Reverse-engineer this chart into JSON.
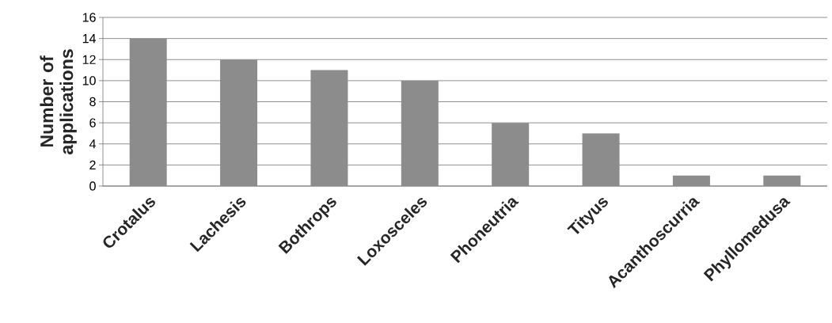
{
  "chart_data": {
    "type": "bar",
    "ylabel": "Number of applications",
    "categories": [
      "Crotalus",
      "Lachesis",
      "Bothrops",
      "Loxosceles",
      "Phoneutria",
      "Tityus",
      "Acanthoscurria",
      "Phyllomedusa"
    ],
    "values": [
      14,
      12,
      11,
      10,
      6,
      5,
      1,
      1
    ],
    "color": "#8c8c8c",
    "ylim": [
      0,
      16
    ],
    "yticks": [
      0,
      2,
      4,
      6,
      8,
      10,
      12,
      14,
      16
    ],
    "grid": "y"
  }
}
